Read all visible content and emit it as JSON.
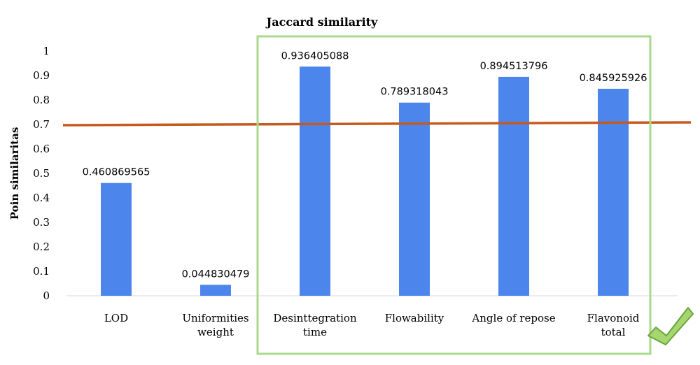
{
  "chart_data": {
    "type": "bar",
    "title": "Jaccard similarity",
    "ylabel": "Poin similaritas",
    "xlabel": "",
    "ylim": [
      0,
      1
    ],
    "yticks": [
      "0",
      "0.1",
      "0.2",
      "0.3",
      "0.4",
      "0.5",
      "0.6",
      "0.7",
      "0.8",
      "0.9",
      "1"
    ],
    "categories": [
      [
        "LOD"
      ],
      [
        "Uniformities",
        "weight"
      ],
      [
        "Desinttegration",
        "time"
      ],
      [
        "Flowability"
      ],
      [
        "Angle of repose"
      ],
      [
        "Flavonoid",
        "total"
      ]
    ],
    "values": [
      0.460869565,
      0.044830479,
      0.936405088,
      0.789318043,
      0.894513796,
      0.845925926
    ],
    "data_labels": [
      "0.460869565",
      "0.044830479",
      "0.936405088",
      "0.789318043",
      "0.894513796",
      "0.845925926"
    ],
    "threshold": 0.7,
    "grid": false,
    "legend": "none",
    "highlight_categories": [
      2,
      3,
      4,
      5
    ],
    "colors": {
      "bar": "#4c86ed",
      "threshold_line": "#c55a1e",
      "highlight_box": "#a9d98b",
      "checkmark_fill": "#a6d66f",
      "checkmark_stroke": "#6aa53c"
    },
    "icons": [
      "checkmark-icon"
    ]
  }
}
